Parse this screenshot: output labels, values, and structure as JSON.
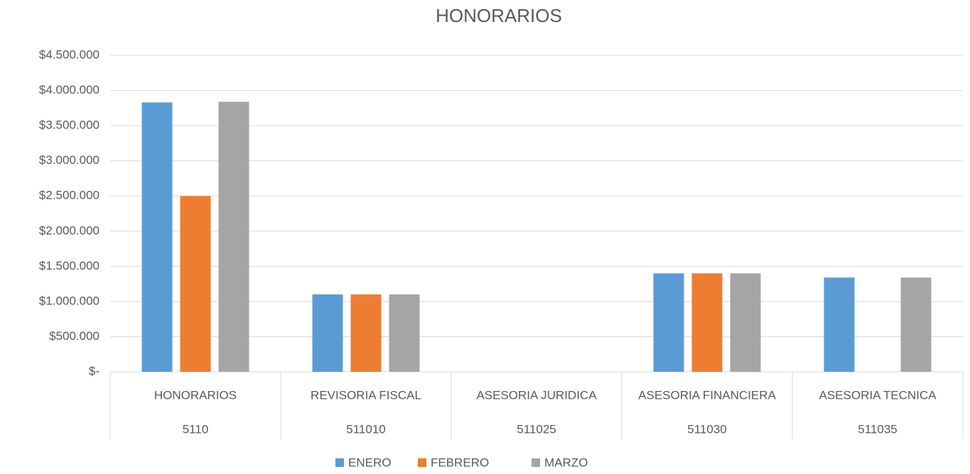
{
  "chart_data": {
    "type": "bar",
    "title": "HONORARIOS",
    "categories": [
      "HONORARIOS",
      "REVISORIA FISCAL",
      "ASESORIA JURIDICA",
      "ASESORIA FINANCIERA",
      "ASESORIA TECNICA"
    ],
    "subcategories": [
      "5110",
      "511010",
      "511025",
      "511030",
      "511035"
    ],
    "series": [
      {
        "name": "ENERO",
        "color": "#5b9bd5",
        "values": [
          3830000,
          1100000,
          0,
          1400000,
          1340000
        ]
      },
      {
        "name": "FEBRERO",
        "color": "#ed7d31",
        "values": [
          2500000,
          1100000,
          0,
          1400000,
          0
        ]
      },
      {
        "name": "MARZO",
        "color": "#a5a5a5",
        "values": [
          3840000,
          1100000,
          0,
          1400000,
          1340000
        ]
      }
    ],
    "ylim": [
      0,
      4500000
    ],
    "yticks": [
      {
        "value": 0,
        "label": "$-"
      },
      {
        "value": 500000,
        "label": "$500.000"
      },
      {
        "value": 1000000,
        "label": "$1.000.000"
      },
      {
        "value": 1500000,
        "label": "$1.500.000"
      },
      {
        "value": 2000000,
        "label": "$2.000.000"
      },
      {
        "value": 2500000,
        "label": "$2.500.000"
      },
      {
        "value": 3000000,
        "label": "$3.000.000"
      },
      {
        "value": 3500000,
        "label": "$3.500.000"
      },
      {
        "value": 4000000,
        "label": "$4.000.000"
      },
      {
        "value": 4500000,
        "label": "$4.500.000"
      }
    ],
    "grid": true,
    "legend": "bottom"
  }
}
